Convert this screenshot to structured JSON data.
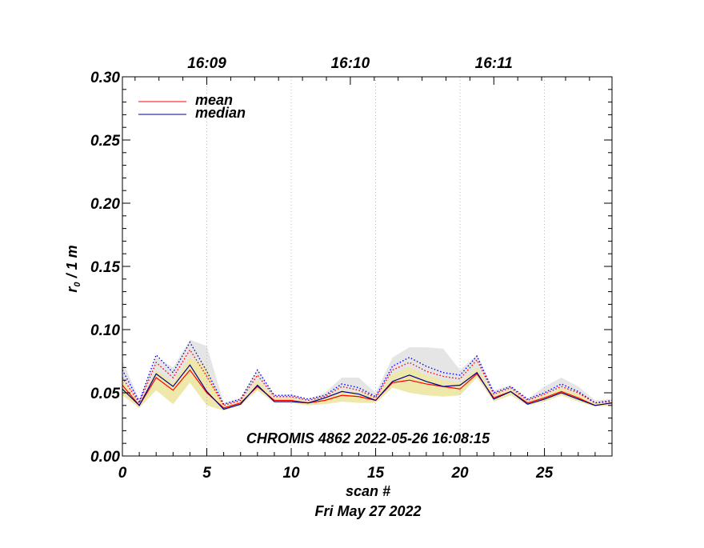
{
  "chart_data": {
    "type": "line",
    "title": "CHROMIS 4862 2022-05-26 16:08:15",
    "xlabel": "scan #",
    "xlabel2": "Fri May 27 2022",
    "ylabel_main": "r",
    "ylabel_sub": "0",
    "ylabel_rest": " / 1 m",
    "xlim": [
      0,
      29
    ],
    "ylim": [
      0,
      0.3
    ],
    "xticks": [
      0,
      5,
      10,
      15,
      20,
      25
    ],
    "xtick_labels": [
      "0",
      "5",
      "10",
      "15",
      "20",
      "25"
    ],
    "yticks": [
      0,
      0.05,
      0.1,
      0.15,
      0.2,
      0.25,
      0.3
    ],
    "ytick_labels": [
      "0.00",
      "0.05",
      "0.10",
      "0.15",
      "0.20",
      "0.25",
      "0.30"
    ],
    "top_ticks": [
      {
        "x": 5,
        "label": "16:09"
      },
      {
        "x": 13.5,
        "label": "16:10"
      },
      {
        "x": 22,
        "label": "16:11"
      }
    ],
    "vlines": [
      5,
      10,
      15,
      20,
      25
    ],
    "x": [
      0,
      1,
      2,
      3,
      4,
      5,
      6,
      7,
      8,
      9,
      10,
      11,
      12,
      13,
      14,
      15,
      16,
      17,
      18,
      19,
      20,
      21,
      22,
      23,
      24,
      25,
      26,
      27,
      28,
      29
    ],
    "series": [
      {
        "name": "mean",
        "color": "#ff0000",
        "style": "solid",
        "values": [
          0.056,
          0.04,
          0.062,
          0.052,
          0.068,
          0.05,
          0.038,
          0.042,
          0.055,
          0.044,
          0.044,
          0.042,
          0.044,
          0.048,
          0.047,
          0.044,
          0.058,
          0.06,
          0.057,
          0.055,
          0.053,
          0.065,
          0.046,
          0.051,
          0.042,
          0.046,
          0.051,
          0.046,
          0.04,
          0.042
        ]
      },
      {
        "name": "median",
        "color": "#00008b",
        "style": "solid",
        "values": [
          0.053,
          0.04,
          0.065,
          0.055,
          0.072,
          0.051,
          0.037,
          0.041,
          0.056,
          0.043,
          0.043,
          0.042,
          0.046,
          0.051,
          0.049,
          0.044,
          0.059,
          0.064,
          0.059,
          0.055,
          0.056,
          0.066,
          0.045,
          0.051,
          0.041,
          0.045,
          0.05,
          0.045,
          0.04,
          0.042
        ]
      },
      {
        "name": "mean_upper",
        "color": "#ff0000",
        "style": "dotted",
        "values": [
          0.062,
          0.042,
          0.074,
          0.062,
          0.084,
          0.063,
          0.04,
          0.044,
          0.064,
          0.047,
          0.047,
          0.044,
          0.047,
          0.055,
          0.052,
          0.046,
          0.068,
          0.074,
          0.067,
          0.063,
          0.061,
          0.076,
          0.049,
          0.054,
          0.044,
          0.049,
          0.055,
          0.05,
          0.042,
          0.043
        ]
      },
      {
        "name": "median_upper",
        "color": "#0000ff",
        "style": "dotted",
        "values": [
          0.068,
          0.043,
          0.08,
          0.066,
          0.09,
          0.067,
          0.041,
          0.045,
          0.068,
          0.048,
          0.048,
          0.045,
          0.048,
          0.057,
          0.054,
          0.047,
          0.071,
          0.078,
          0.071,
          0.066,
          0.064,
          0.079,
          0.05,
          0.055,
          0.045,
          0.05,
          0.057,
          0.051,
          0.042,
          0.044
        ]
      }
    ],
    "bands": [
      {
        "name": "mean_band",
        "color": "#e5e5e5",
        "lower": [
          0.052,
          0.039,
          0.06,
          0.048,
          0.066,
          0.044,
          0.036,
          0.041,
          0.054,
          0.043,
          0.043,
          0.041,
          0.043,
          0.047,
          0.046,
          0.043,
          0.057,
          0.062,
          0.06,
          0.058,
          0.058,
          0.064,
          0.046,
          0.05,
          0.041,
          0.046,
          0.05,
          0.045,
          0.04,
          0.041
        ],
        "upper": [
          0.075,
          0.045,
          0.078,
          0.07,
          0.092,
          0.087,
          0.042,
          0.046,
          0.068,
          0.048,
          0.049,
          0.045,
          0.05,
          0.062,
          0.062,
          0.05,
          0.078,
          0.086,
          0.086,
          0.085,
          0.068,
          0.08,
          0.052,
          0.056,
          0.045,
          0.055,
          0.062,
          0.055,
          0.044,
          0.045
        ]
      },
      {
        "name": "median_band",
        "color": "#eee8aa",
        "lower": [
          0.048,
          0.038,
          0.052,
          0.041,
          0.058,
          0.04,
          0.036,
          0.04,
          0.052,
          0.042,
          0.042,
          0.04,
          0.041,
          0.043,
          0.042,
          0.042,
          0.054,
          0.05,
          0.048,
          0.047,
          0.048,
          0.062,
          0.043,
          0.048,
          0.04,
          0.043,
          0.048,
          0.043,
          0.039,
          0.04
        ],
        "upper": [
          0.06,
          0.041,
          0.068,
          0.058,
          0.078,
          0.07,
          0.039,
          0.043,
          0.06,
          0.046,
          0.046,
          0.043,
          0.046,
          0.052,
          0.05,
          0.046,
          0.065,
          0.07,
          0.064,
          0.06,
          0.058,
          0.07,
          0.048,
          0.053,
          0.043,
          0.048,
          0.054,
          0.049,
          0.042,
          0.043
        ]
      }
    ],
    "legend": {
      "position": "top-left",
      "entries": [
        {
          "label": "mean",
          "color": "#ff0000"
        },
        {
          "label": "median",
          "color": "#00008b"
        }
      ]
    }
  }
}
